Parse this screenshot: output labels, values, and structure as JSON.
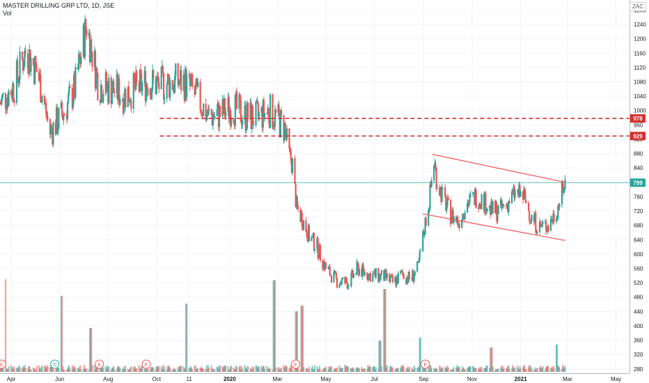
{
  "header": {
    "title": "MASTER DRILLING GRP LTD, 1D, JSE",
    "volume_label": "Vol",
    "currency": "ZAC"
  },
  "colors": {
    "up": "#26a69a",
    "down": "#ef5350",
    "resistance_line": "#d32f2f",
    "last_price_line": "#26a69a",
    "channel": "#ef5350",
    "grid": "#f0f3fa",
    "event_marker": "#ef5350",
    "dividend_marker": "#26a69a"
  },
  "chart_data": {
    "type": "candlestick",
    "title": "MASTER DRILLING GRP LTD, 1D, JSE",
    "y_axis": {
      "unit": "ZAC",
      "ylim": [
        268,
        1308
      ],
      "ticks": [
        280,
        320,
        360,
        400,
        440,
        480,
        520,
        560,
        600,
        640,
        680,
        720,
        760,
        800,
        840,
        880,
        920,
        960,
        1000,
        1040,
        1080,
        1120,
        1160,
        1200,
        1240,
        1280
      ]
    },
    "x_axis": {
      "ticks": [
        "Apr",
        "Jun",
        "Aug",
        "Oct",
        "11",
        "2020",
        "Mar",
        "May",
        "Jul",
        "Sep",
        "Nov",
        "2021",
        "Mar",
        "May"
      ],
      "tick_dates": [
        "2019-04-01",
        "2019-06-01",
        "2019-08-01",
        "2019-10-01",
        "2019-11-11",
        "2020-01-01",
        "2020-03-01",
        "2020-05-01",
        "2020-07-01",
        "2020-09-01",
        "2020-11-01",
        "2021-01-01",
        "2021-03-01",
        "2021-05-01"
      ],
      "range": [
        "2019-03-18",
        "2021-05-18"
      ]
    },
    "price_labels": [
      {
        "value": 978,
        "text": "978",
        "style": "resistance"
      },
      {
        "value": 929,
        "text": "929",
        "style": "resistance"
      },
      {
        "value": 799,
        "text": "799",
        "style": "last"
      }
    ],
    "horizontal_lines": [
      {
        "value": 978,
        "from": "2019-10-05",
        "style": "dashed"
      },
      {
        "value": 929,
        "from": "2019-10-05",
        "style": "dashed"
      }
    ],
    "channel": [
      {
        "from": {
          "date": "2020-09-12",
          "value": 878
        },
        "to": {
          "date": "2021-02-26",
          "value": 800
        }
      },
      {
        "from": {
          "date": "2020-08-31",
          "value": 712
        },
        "to": {
          "date": "2021-02-26",
          "value": 638
        }
      }
    ],
    "price_anchors": [
      [
        "2019-03-18",
        1020
      ],
      [
        "2019-04-05",
        1070
      ],
      [
        "2019-04-20",
        1170
      ],
      [
        "2019-05-05",
        1100
      ],
      [
        "2019-05-20",
        940
      ],
      [
        "2019-06-05",
        990
      ],
      [
        "2019-06-20",
        1060
      ],
      [
        "2019-07-05",
        1240
      ],
      [
        "2019-07-20",
        1070
      ],
      [
        "2019-08-05",
        1060
      ],
      [
        "2019-08-20",
        1045
      ],
      [
        "2019-09-05",
        1060
      ],
      [
        "2019-09-20",
        1080
      ],
      [
        "2019-10-05",
        1070
      ],
      [
        "2019-10-20",
        1080
      ],
      [
        "2019-11-05",
        1080
      ],
      [
        "2019-11-20",
        1040
      ],
      [
        "2019-12-05",
        985
      ],
      [
        "2019-12-20",
        990
      ],
      [
        "2020-01-05",
        1010
      ],
      [
        "2020-01-20",
        985
      ],
      [
        "2020-02-05",
        980
      ],
      [
        "2020-02-20",
        1000
      ],
      [
        "2020-03-01",
        975
      ],
      [
        "2020-03-10",
        950
      ],
      [
        "2020-03-15",
        880
      ],
      [
        "2020-03-20",
        850
      ],
      [
        "2020-03-25",
        730
      ],
      [
        "2020-04-01",
        700
      ],
      [
        "2020-04-10",
        650
      ],
      [
        "2020-04-20",
        620
      ],
      [
        "2020-05-01",
        560
      ],
      [
        "2020-05-15",
        525
      ],
      [
        "2020-05-30",
        520
      ],
      [
        "2020-06-10",
        560
      ],
      [
        "2020-06-20",
        545
      ],
      [
        "2020-07-01",
        540
      ],
      [
        "2020-07-15",
        535
      ],
      [
        "2020-07-25",
        520
      ],
      [
        "2020-08-05",
        545
      ],
      [
        "2020-08-15",
        530
      ],
      [
        "2020-08-25",
        560
      ],
      [
        "2020-09-01",
        660
      ],
      [
        "2020-09-08",
        750
      ],
      [
        "2020-09-14",
        860
      ],
      [
        "2020-09-18",
        800
      ],
      [
        "2020-09-25",
        760
      ],
      [
        "2020-10-05",
        710
      ],
      [
        "2020-10-15",
        690
      ],
      [
        "2020-10-25",
        740
      ],
      [
        "2020-11-05",
        760
      ],
      [
        "2020-11-15",
        750
      ],
      [
        "2020-11-25",
        720
      ],
      [
        "2020-12-05",
        720
      ],
      [
        "2020-12-15",
        740
      ],
      [
        "2020-12-25",
        770
      ],
      [
        "2021-01-05",
        760
      ],
      [
        "2021-01-15",
        700
      ],
      [
        "2021-01-25",
        675
      ],
      [
        "2021-02-05",
        680
      ],
      [
        "2021-02-15",
        720
      ],
      [
        "2021-02-26",
        799
      ]
    ],
    "volume": {
      "spikes": [
        {
          "date": "2019-03-24",
          "rel": 0.95
        },
        {
          "date": "2019-06-03",
          "rel": 0.78
        },
        {
          "date": "2019-07-10",
          "rel": 0.45
        },
        {
          "date": "2019-11-08",
          "rel": 0.7
        },
        {
          "date": "2020-02-26",
          "rel": 0.94
        },
        {
          "date": "2020-03-25",
          "rel": 0.62
        },
        {
          "date": "2020-04-01",
          "rel": 0.68
        },
        {
          "date": "2020-07-14",
          "rel": 0.85
        },
        {
          "date": "2020-07-08",
          "rel": 0.32
        },
        {
          "date": "2020-08-28",
          "rel": 0.35
        },
        {
          "date": "2020-11-25",
          "rel": 0.25
        },
        {
          "date": "2021-02-15",
          "rel": 0.28
        }
      ]
    },
    "event_markers": [
      {
        "date": "2019-03-20",
        "letter": "E",
        "kind": "earnings"
      },
      {
        "date": "2019-05-26",
        "letter": "D",
        "kind": "dividend"
      },
      {
        "date": "2019-07-21",
        "letter": "E",
        "kind": "earnings"
      },
      {
        "date": "2019-09-18",
        "letter": "E",
        "kind": "earnings"
      },
      {
        "date": "2020-03-24",
        "letter": "E",
        "kind": "earnings"
      },
      {
        "date": "2020-09-03",
        "letter": "E",
        "kind": "earnings"
      }
    ],
    "grid": true
  }
}
